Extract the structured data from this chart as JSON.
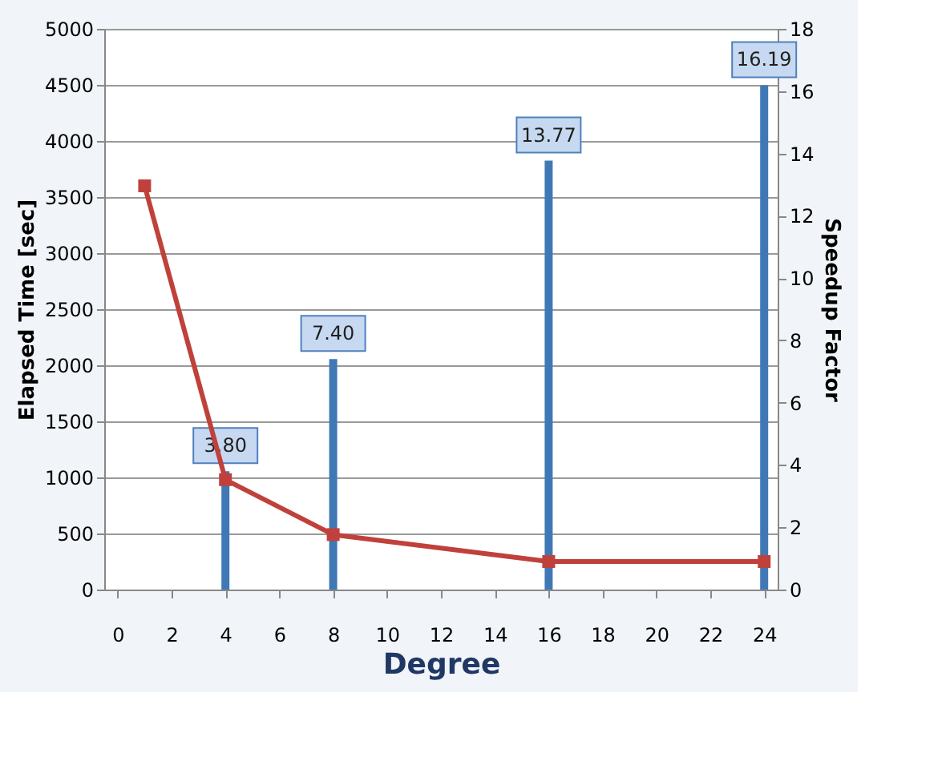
{
  "chart_data": {
    "type": "bar",
    "xlabel": "Degree",
    "ylabel": "Elapsed Time [sec]",
    "y2label": "Speedup Factor",
    "x": [
      4,
      8,
      16,
      24
    ],
    "xlim": [
      -0.5,
      24.5
    ],
    "xticks": [
      0,
      2,
      4,
      6,
      8,
      10,
      12,
      14,
      16,
      18,
      20,
      22,
      24
    ],
    "ylim": [
      0,
      5000
    ],
    "yticks": [
      0,
      500,
      1000,
      1500,
      2000,
      2500,
      3000,
      3500,
      4000,
      4500,
      5000
    ],
    "y2lim": [
      0,
      18
    ],
    "y2ticks": [
      0,
      2,
      4,
      6,
      8,
      10,
      12,
      14,
      16,
      18
    ],
    "grid": "y",
    "series": [
      {
        "axis": "y2",
        "color": "#3f78b5",
        "values": [
          3.8,
          7.4,
          13.77,
          16.19
        ],
        "value_labels": [
          "3.80",
          "7.40",
          "13.77",
          "16.19"
        ]
      },
      {
        "type": "line",
        "axis": "y",
        "color": "#c0413b",
        "marker": "square",
        "x": [
          1,
          4,
          8,
          16,
          24
        ],
        "values": [
          3600,
          980,
          490,
          250,
          250
        ]
      }
    ]
  }
}
